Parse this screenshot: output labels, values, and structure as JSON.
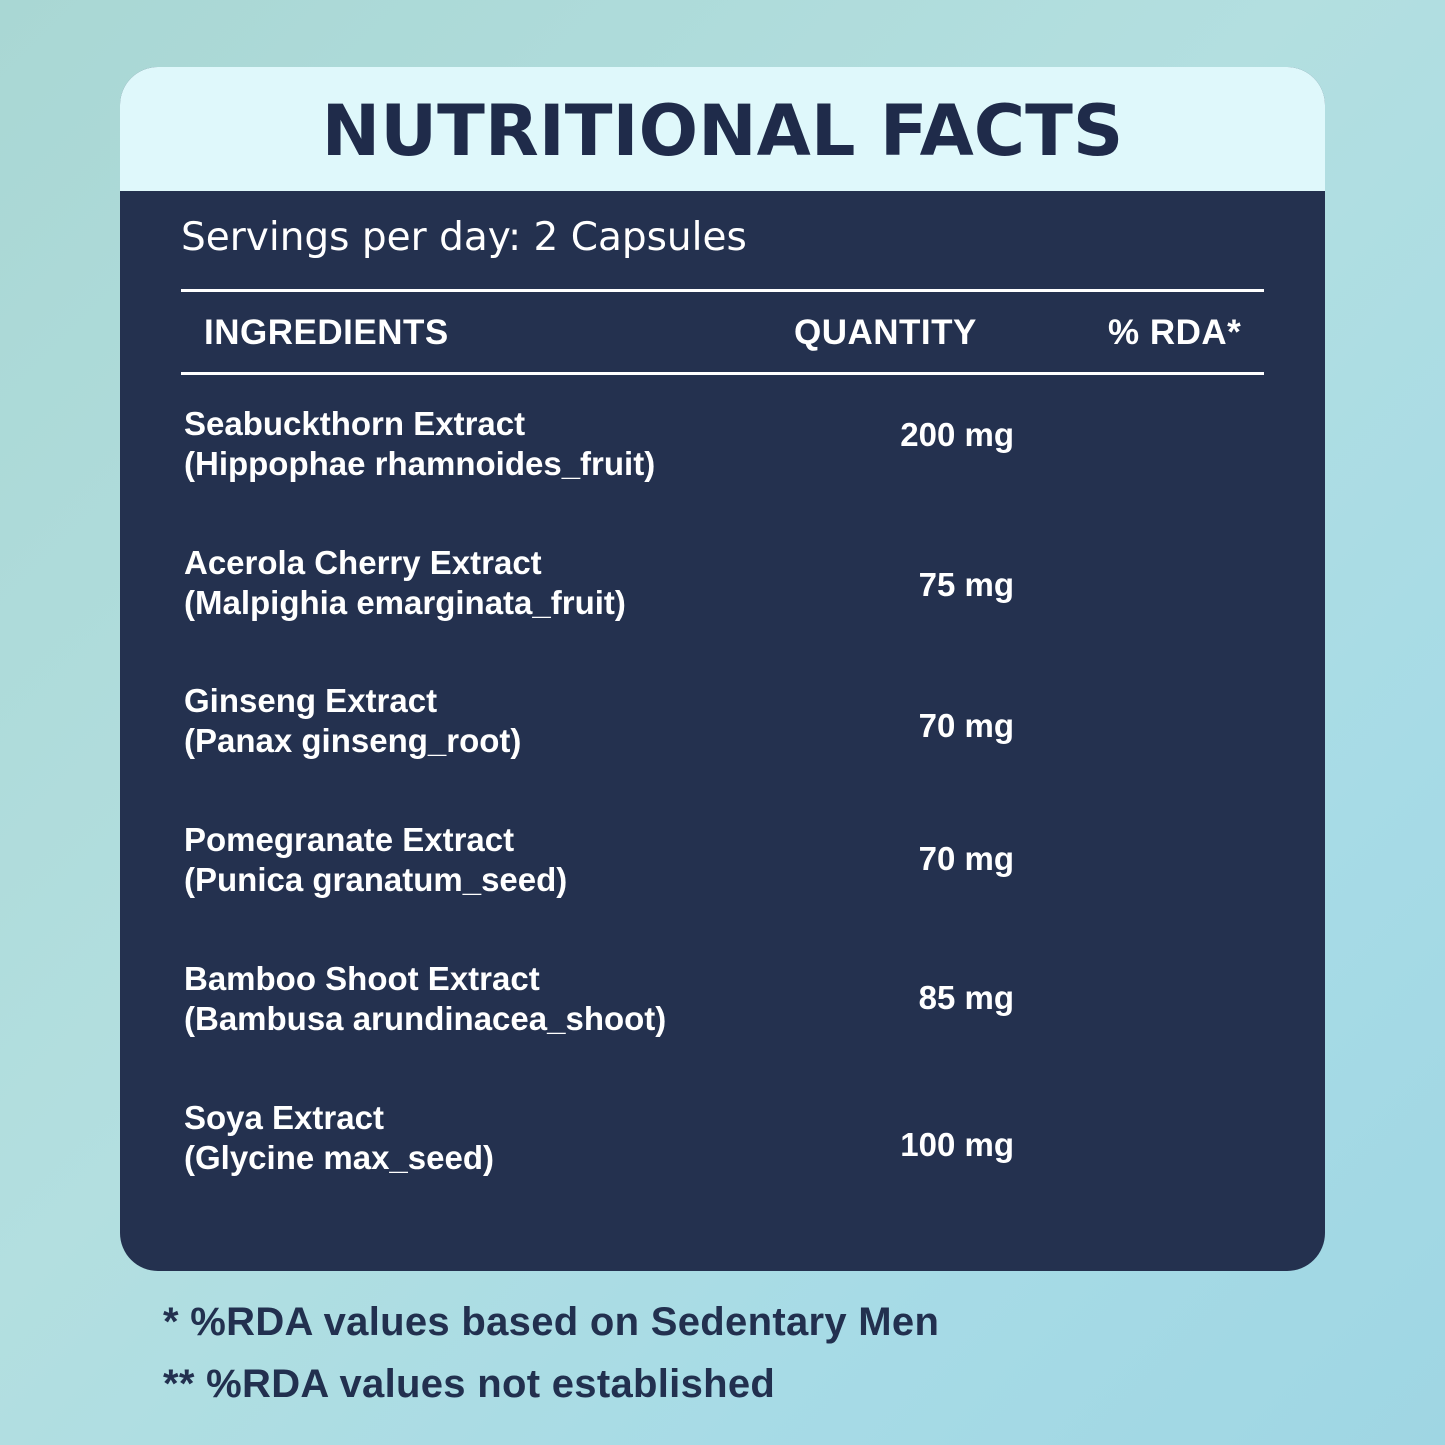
{
  "title": "NUTRITIONAL FACTS",
  "servings": "Servings per day: 2 Capsules",
  "columns": {
    "ingredients": "INGREDIENTS",
    "quantity": "QUANTITY",
    "rda": "% RDA*"
  },
  "rows": [
    {
      "name": "Seabuckthorn Extract",
      "latin": "(Hippophae rhamnoides_fruit)",
      "quantity": "200 mg"
    },
    {
      "name": "Acerola Cherry Extract",
      "latin": "(Malpighia emarginata_fruit)",
      "quantity": "75 mg"
    },
    {
      "name": "Ginseng Extract",
      "latin": "(Panax ginseng_root)",
      "quantity": "70 mg"
    },
    {
      "name": "Pomegranate Extract",
      "latin": "(Punica granatum_seed)",
      "quantity": "70 mg"
    },
    {
      "name": "Bamboo Shoot Extract",
      "latin": "(Bambusa arundinacea_shoot)",
      "quantity": "85 mg"
    },
    {
      "name": "Soya Extract",
      "latin": "(Glycine max_seed)",
      "quantity": "100 mg"
    }
  ],
  "footnotes": [
    "* %RDA values based on Sedentary Men",
    "** %RDA values not established"
  ],
  "colors": {
    "card": "#24314f",
    "header": "#dff8fb",
    "title": "#1f2b4a",
    "background": "#a9d7d4"
  }
}
